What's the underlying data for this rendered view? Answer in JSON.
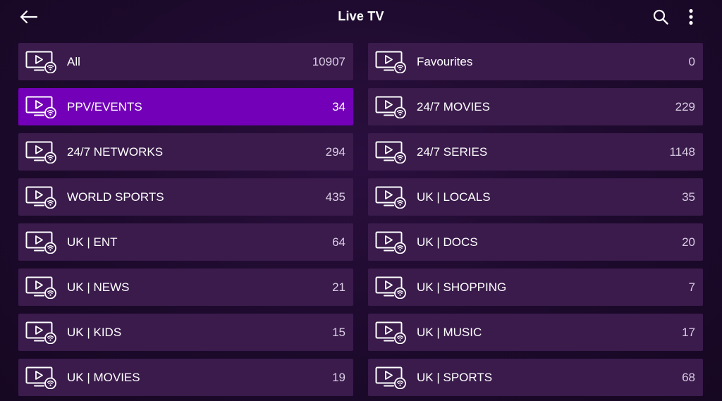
{
  "header": {
    "title": "Live TV",
    "back_icon": "arrow-left-icon",
    "search_icon": "search-icon",
    "more_icon": "more-vertical-icon"
  },
  "colors": {
    "background": "#1d0a2c",
    "tile": "#3a1b4c",
    "tile_selected": "#7300b8"
  },
  "categories": [
    {
      "name": "All",
      "count": "10907",
      "selected": false
    },
    {
      "name": "Favourites",
      "count": "0",
      "selected": false
    },
    {
      "name": "PPV/EVENTS",
      "count": "34",
      "selected": true
    },
    {
      "name": "24/7 MOVIES",
      "count": "229",
      "selected": false
    },
    {
      "name": "24/7 NETWORKS",
      "count": "294",
      "selected": false
    },
    {
      "name": "24/7 SERIES",
      "count": "1148",
      "selected": false
    },
    {
      "name": "WORLD SPORTS",
      "count": "435",
      "selected": false
    },
    {
      "name": "UK | LOCALS",
      "count": "35",
      "selected": false
    },
    {
      "name": "UK | ENT",
      "count": "64",
      "selected": false
    },
    {
      "name": "UK | DOCS",
      "count": "20",
      "selected": false
    },
    {
      "name": "UK | NEWS",
      "count": "21",
      "selected": false
    },
    {
      "name": "UK | SHOPPING",
      "count": "7",
      "selected": false
    },
    {
      "name": "UK | KIDS",
      "count": "15",
      "selected": false
    },
    {
      "name": "UK | MUSIC",
      "count": "17",
      "selected": false
    },
    {
      "name": "UK | MOVIES",
      "count": "19",
      "selected": false
    },
    {
      "name": "UK | SPORTS",
      "count": "68",
      "selected": false
    }
  ]
}
